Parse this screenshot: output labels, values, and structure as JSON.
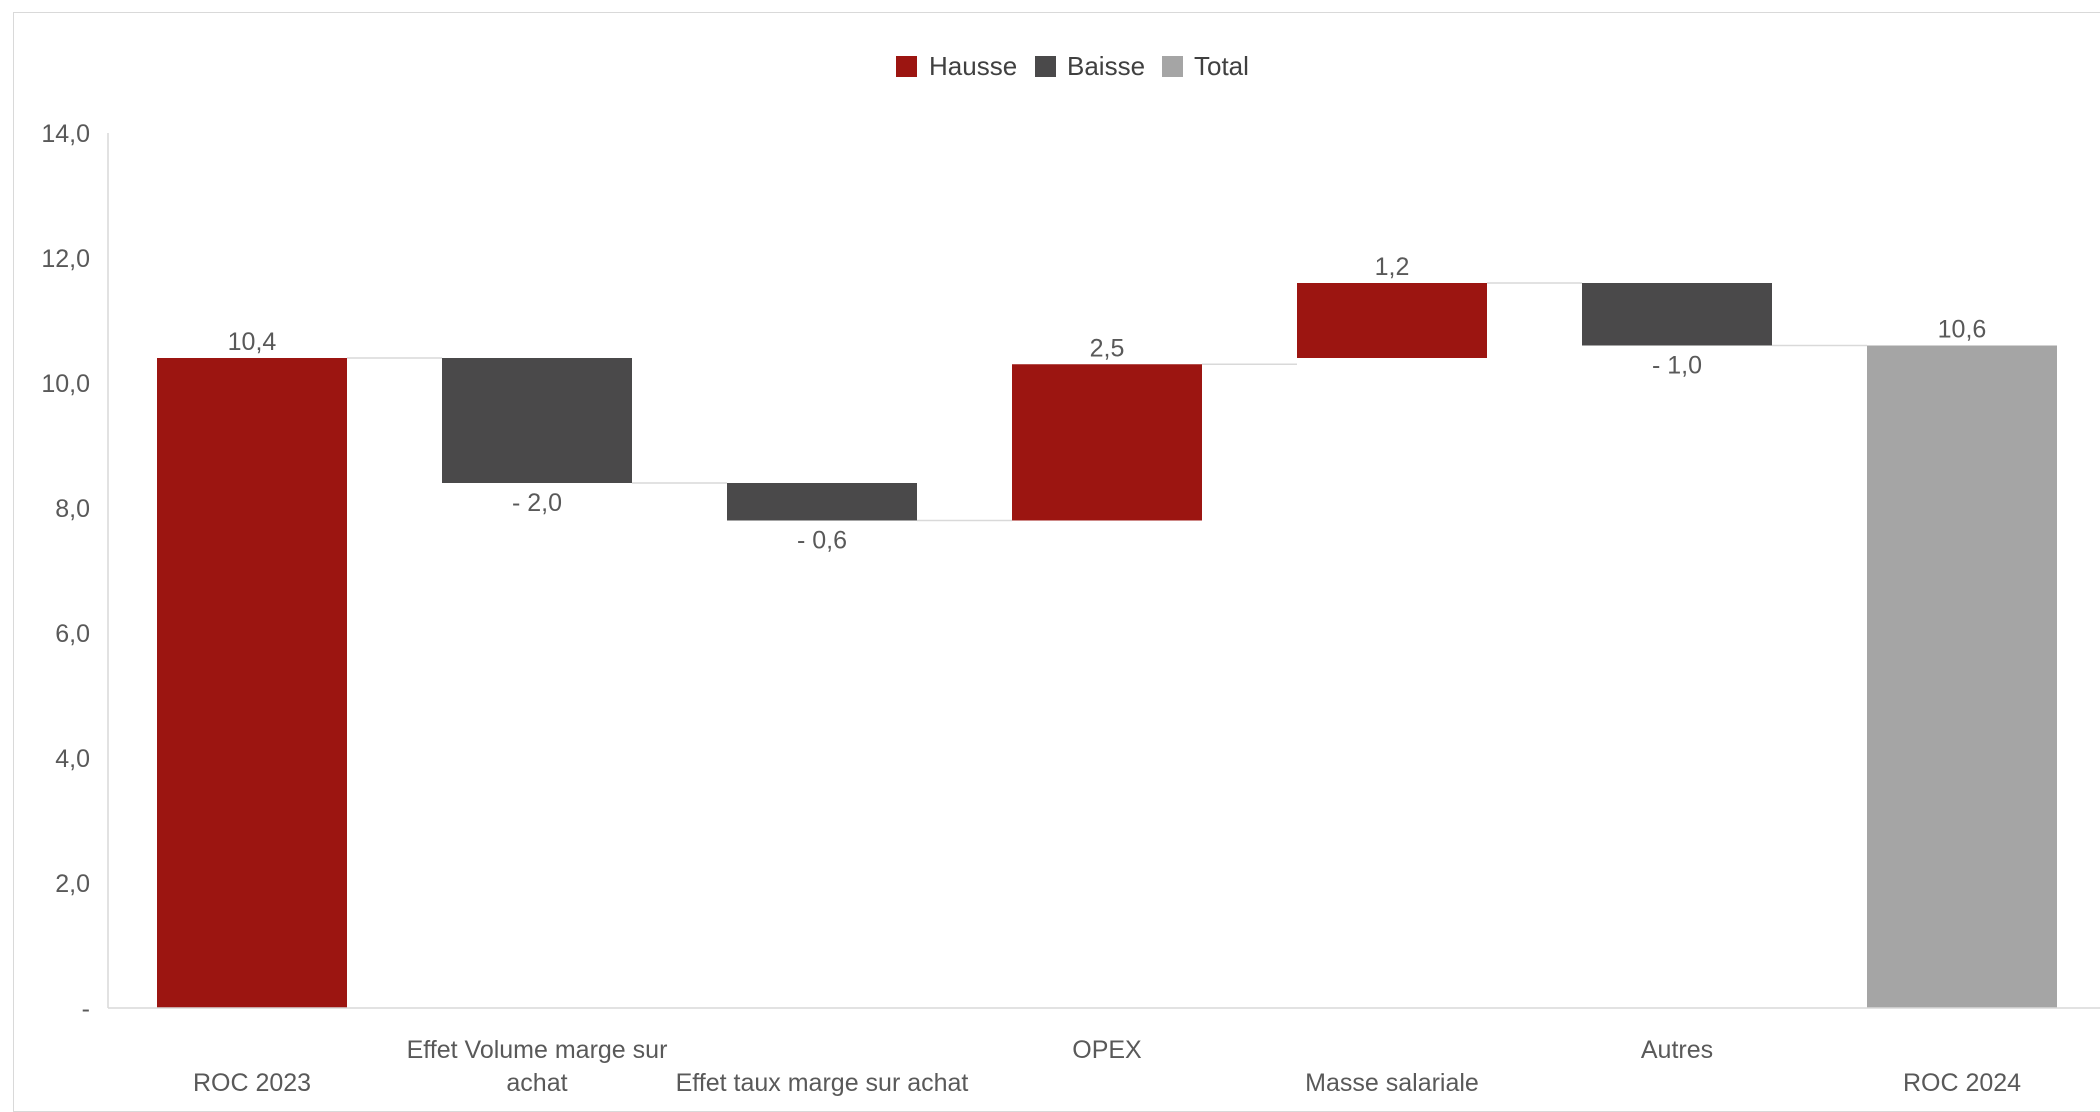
{
  "chart_data": {
    "type": "bar",
    "subtype": "waterfall",
    "categories": [
      [
        "ROC 2023"
      ],
      [
        "Effet Volume marge sur",
        "achat"
      ],
      [
        "Effet taux marge sur achat"
      ],
      [
        "OPEX"
      ],
      [
        "Masse salariale"
      ],
      [
        "Autres"
      ],
      [
        "ROC 2024"
      ]
    ],
    "bars": [
      {
        "kind": "total",
        "start": 0,
        "end": 10.4,
        "label": "10,4"
      },
      {
        "kind": "decrease",
        "start": 10.4,
        "end": 8.4,
        "label": "- 2,0"
      },
      {
        "kind": "decrease",
        "start": 8.4,
        "end": 7.8,
        "label": "- 0,6"
      },
      {
        "kind": "increase",
        "start": 7.8,
        "end": 10.3,
        "label": "2,5"
      },
      {
        "kind": "increase",
        "start": 10.4,
        "end": 11.6,
        "label": "1,2"
      },
      {
        "kind": "decrease",
        "start": 11.6,
        "end": 10.6,
        "label": "- 1,0"
      },
      {
        "kind": "final",
        "start": 0,
        "end": 10.6,
        "label": "10,6"
      }
    ],
    "ylim": [
      0,
      14
    ],
    "yticks": [
      {
        "value": 0,
        "label": "-"
      },
      {
        "value": 2,
        "label": "2,0"
      },
      {
        "value": 4,
        "label": "4,0"
      },
      {
        "value": 6,
        "label": "6,0"
      },
      {
        "value": 8,
        "label": "8,0"
      },
      {
        "value": 10,
        "label": "10,0"
      },
      {
        "value": 12,
        "label": "12,0"
      },
      {
        "value": 14,
        "label": "14,0"
      }
    ],
    "legend": {
      "placement": "top-center",
      "entries": [
        {
          "name": "Hausse",
          "color": "#9c1511"
        },
        {
          "name": "Baisse",
          "color": "#4a494a"
        },
        {
          "name": "Total",
          "color": "#a5a5a5"
        }
      ]
    },
    "grid": false,
    "title": "",
    "xlabel": "",
    "ylabel": ""
  },
  "colors": {
    "increase": "#9c1511",
    "decrease": "#4a494a",
    "total": "#a5a5a5",
    "first_total": "#9c1511",
    "connector": "#d9d9d9",
    "axis": "#d9d9d9"
  }
}
